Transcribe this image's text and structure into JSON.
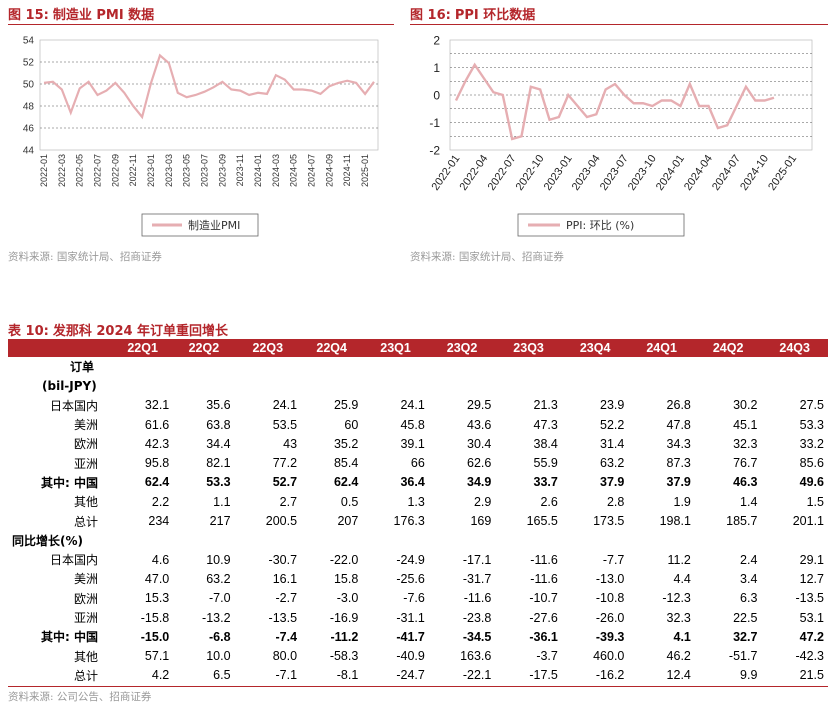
{
  "figures": [
    {
      "label": "图 15:",
      "title": "制造业 PMI 数据",
      "source": "资料来源: 国家统计局、招商证券"
    },
    {
      "label": "图 16:",
      "title": "PPI 环比数据",
      "source": "资料来源: 国家统计局、招商证券"
    }
  ],
  "chart_data": [
    {
      "type": "line",
      "title": "制造业 PMI 数据",
      "ylim": [
        44,
        54
      ],
      "yticks": [
        "44",
        "46",
        "48",
        "50",
        "52",
        "54"
      ],
      "xticks": [
        "2022-01",
        "2022-03",
        "2022-05",
        "2022-07",
        "2022-09",
        "2022-11",
        "2023-01",
        "2023-03",
        "2023-05",
        "2023-07",
        "2023-09",
        "2023-11",
        "2024-01",
        "2024-03",
        "2024-05",
        "2024-07",
        "2024-09",
        "2024-11",
        "2025-01"
      ],
      "series": [
        {
          "name": "制造业PMI",
          "color": "#e6aeb2",
          "values": [
            50.1,
            50.2,
            49.5,
            47.4,
            49.6,
            50.2,
            49.0,
            49.4,
            50.1,
            49.2,
            48.0,
            47.0,
            50.1,
            52.6,
            51.9,
            49.2,
            48.8,
            49.0,
            49.3,
            49.7,
            50.2,
            49.5,
            49.4,
            49.0,
            49.2,
            49.1,
            50.8,
            50.4,
            49.5,
            49.5,
            49.4,
            49.1,
            49.8,
            50.1,
            50.3,
            50.1,
            49.1,
            50.2
          ]
        }
      ],
      "legend": "制造业PMI",
      "grid": true
    },
    {
      "type": "line",
      "title": "PPI 环比数据",
      "ylim": [
        -2,
        2
      ],
      "yticks": [
        "-2",
        "-1.5",
        "-1",
        "-0.5",
        "0",
        "0.5",
        "1",
        "1.5",
        "2"
      ],
      "xticks": [
        "2022-01",
        "2022-04",
        "2022-07",
        "2022-10",
        "2023-01",
        "2023-04",
        "2023-07",
        "2023-10",
        "2024-01",
        "2024-04",
        "2024-07",
        "2024-10",
        "2025-01"
      ],
      "series": [
        {
          "name": "PPI: 环比 (%)",
          "color": "#e6aeb2",
          "values": [
            -0.2,
            0.5,
            1.1,
            0.6,
            0.1,
            0,
            -1.6,
            -1.5,
            0.3,
            0.2,
            -0.9,
            -0.8,
            0,
            -0.4,
            -0.8,
            -0.7,
            0.2,
            0.4,
            0,
            -0.3,
            -0.3,
            -0.4,
            -0.2,
            -0.2,
            -0.4,
            0.4,
            -0.4,
            -0.4,
            -1.2,
            -1.1,
            -0.4,
            0.3,
            -0.2,
            -0.2,
            -0.1
          ]
        }
      ],
      "legend": "PPI: 环比 (%)",
      "grid": true
    }
  ],
  "table": {
    "label": "表 10:",
    "title": "发那科 2024 年订单重回增长",
    "columns": [
      "22Q1",
      "22Q2",
      "22Q3",
      "22Q4",
      "23Q1",
      "23Q2",
      "23Q3",
      "23Q4",
      "24Q1",
      "24Q2",
      "24Q3"
    ],
    "section1_header_line1": "订单",
    "section1_header_line2": "(bil-JPY)",
    "section1": [
      {
        "label": "日本国内",
        "bold": false,
        "values": [
          "32.1",
          "35.6",
          "24.1",
          "25.9",
          "24.1",
          "29.5",
          "21.3",
          "23.9",
          "26.8",
          "30.2",
          "27.5"
        ]
      },
      {
        "label": "美洲",
        "bold": false,
        "values": [
          "61.6",
          "63.8",
          "53.5",
          "60",
          "45.8",
          "43.6",
          "47.3",
          "52.2",
          "47.8",
          "45.1",
          "53.3"
        ]
      },
      {
        "label": "欧洲",
        "bold": false,
        "values": [
          "42.3",
          "34.4",
          "43",
          "35.2",
          "39.1",
          "30.4",
          "38.4",
          "31.4",
          "34.3",
          "32.3",
          "33.2"
        ]
      },
      {
        "label": "亚洲",
        "bold": false,
        "values": [
          "95.8",
          "82.1",
          "77.2",
          "85.4",
          "66",
          "62.6",
          "55.9",
          "63.2",
          "87.3",
          "76.7",
          "85.6"
        ]
      },
      {
        "label": "其中: 中国",
        "bold": true,
        "values": [
          "62.4",
          "53.3",
          "52.7",
          "62.4",
          "36.4",
          "34.9",
          "33.7",
          "37.9",
          "37.9",
          "46.3",
          "49.6"
        ]
      },
      {
        "label": "其他",
        "bold": false,
        "values": [
          "2.2",
          "1.1",
          "2.7",
          "0.5",
          "1.3",
          "2.9",
          "2.6",
          "2.8",
          "1.9",
          "1.4",
          "1.5"
        ]
      },
      {
        "label": "总计",
        "bold": false,
        "values": [
          "234",
          "217",
          "200.5",
          "207",
          "176.3",
          "169",
          "165.5",
          "173.5",
          "198.1",
          "185.7",
          "201.1"
        ]
      }
    ],
    "section2_header": "同比增长(%)",
    "section2": [
      {
        "label": "日本国内",
        "bold": false,
        "values": [
          "4.6",
          "10.9",
          "-30.7",
          "-22.0",
          "-24.9",
          "-17.1",
          "-11.6",
          "-7.7",
          "11.2",
          "2.4",
          "29.1"
        ]
      },
      {
        "label": "美洲",
        "bold": false,
        "values": [
          "47.0",
          "63.2",
          "16.1",
          "15.8",
          "-25.6",
          "-31.7",
          "-11.6",
          "-13.0",
          "4.4",
          "3.4",
          "12.7"
        ]
      },
      {
        "label": "欧洲",
        "bold": false,
        "values": [
          "15.3",
          "-7.0",
          "-2.7",
          "-3.0",
          "-7.6",
          "-11.6",
          "-10.7",
          "-10.8",
          "-12.3",
          "6.3",
          "-13.5"
        ]
      },
      {
        "label": "亚洲",
        "bold": false,
        "values": [
          "-15.8",
          "-13.2",
          "-13.5",
          "-16.9",
          "-31.1",
          "-23.8",
          "-27.6",
          "-26.0",
          "32.3",
          "22.5",
          "53.1"
        ]
      },
      {
        "label": "其中: 中国",
        "bold": true,
        "values": [
          "-15.0",
          "-6.8",
          "-7.4",
          "-11.2",
          "-41.7",
          "-34.5",
          "-36.1",
          "-39.3",
          "4.1",
          "32.7",
          "47.2"
        ]
      },
      {
        "label": "其他",
        "bold": false,
        "values": [
          "57.1",
          "10.0",
          "80.0",
          "-58.3",
          "-40.9",
          "163.6",
          "-3.7",
          "460.0",
          "46.2",
          "-51.7",
          "-42.3"
        ]
      },
      {
        "label": "总计",
        "bold": false,
        "values": [
          "4.2",
          "6.5",
          "-7.1",
          "-8.1",
          "-24.7",
          "-22.1",
          "-17.5",
          "-16.2",
          "12.4",
          "9.9",
          "21.5"
        ]
      }
    ],
    "source": "资料来源: 公司公告、招商证券"
  }
}
